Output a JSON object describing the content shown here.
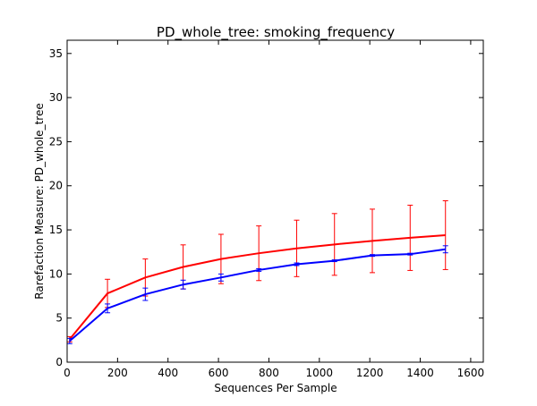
{
  "chart_data": {
    "type": "line",
    "title": "PD_whole_tree: smoking_frequency",
    "xlabel": "Sequences Per Sample",
    "ylabel": "Rarefaction Measure: PD_whole_tree",
    "xlim": [
      0,
      1650
    ],
    "ylim": [
      0,
      36.5
    ],
    "xticks": [
      0,
      200,
      400,
      600,
      800,
      1000,
      1200,
      1400,
      1600
    ],
    "yticks": [
      0,
      5,
      10,
      15,
      20,
      25,
      30,
      35
    ],
    "grid": false,
    "legend": "none",
    "x": [
      10,
      160,
      310,
      460,
      610,
      760,
      910,
      1060,
      1210,
      1360,
      1500
    ],
    "series": [
      {
        "color": "#ff0000",
        "values": [
          2.6,
          7.8,
          9.6,
          10.8,
          11.7,
          12.35,
          12.9,
          13.35,
          13.75,
          14.1,
          14.4
        ],
        "errors": [
          0.3,
          1.6,
          2.1,
          2.5,
          2.8,
          3.1,
          3.2,
          3.5,
          3.6,
          3.7,
          3.9
        ]
      },
      {
        "color": "#0000ff",
        "values": [
          2.4,
          6.1,
          7.7,
          8.8,
          9.6,
          10.45,
          11.1,
          11.5,
          12.1,
          12.25,
          12.8
        ],
        "errors": [
          0.3,
          0.5,
          0.7,
          0.5,
          0.4,
          0.15,
          0.15,
          0.1,
          0.1,
          0.1,
          0.4
        ]
      }
    ]
  }
}
